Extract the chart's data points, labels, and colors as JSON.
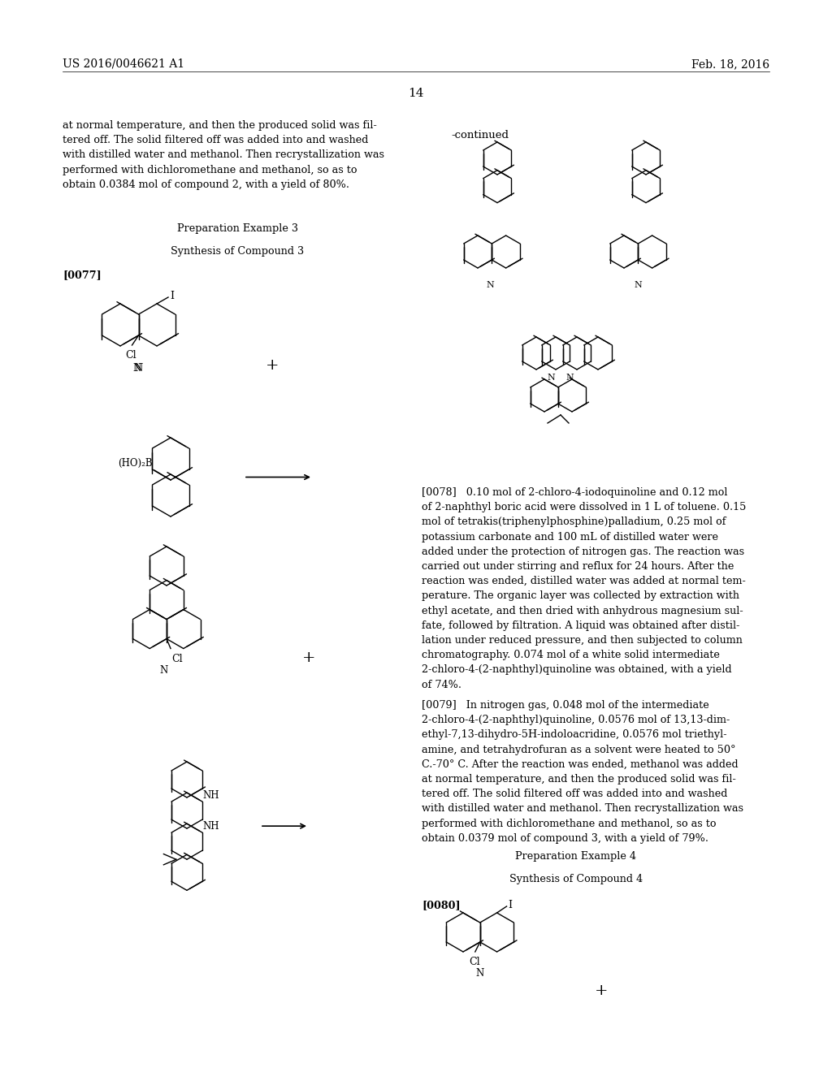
{
  "background_color": "#ffffff",
  "header_left": "US 2016/0046621 A1",
  "header_right": "Feb. 18, 2016",
  "page_number": "14",
  "continued_label": "-continued",
  "para_text1": "at normal temperature, and then the produced solid was fil-\ntered off. The solid filtered off was added into and washed\nwith distilled water and methanol. Then recrystallization was\nperformed with dichloromethane and methanol, so as to\nobtain 0.0384 mol of compound 2, with a yield of 80%.",
  "prep3": "Preparation Example 3",
  "synth3": "Synthesis of Compound 3",
  "tag0077": "[0077]",
  "tag0078": "[0078]",
  "tag0079": "[0079]",
  "tag0080": "[0080]",
  "prep4": "Preparation Example 4",
  "synth4": "Synthesis of Compound 4",
  "text0078": "[0078]   0.10 mol of 2-chloro-4-iodoquinoline and 0.12 mol\nof 2-naphthyl boric acid were dissolved in 1 L of toluene. 0.15\nmol of tetrakis(triphenylphosphine)palladium, 0.25 mol of\npotassium carbonate and 100 mL of distilled water were\nadded under the protection of nitrogen gas. The reaction was\ncarried out under stirring and reflux for 24 hours. After the\nreaction was ended, distilled water was added at normal tem-\nperature. The organic layer was collected by extraction with\nethyl acetate, and then dried with anhydrous magnesium sul-\nfate, followed by filtration. A liquid was obtained after distil-\nlation under reduced pressure, and then subjected to column\nchromatography. 0.074 mol of a white solid intermediate\n2-chloro-4-(2-naphthyl)quinoline was obtained, with a yield\nof 74%.",
  "text0079": "[0079]   In nitrogen gas, 0.048 mol of the intermediate\n2-chloro-4-(2-naphthyl)quinoline, 0.0576 mol of 13,13-dim-\nethyl-7,13-dihydro-5H-indoloacridine, 0.0576 mol triethyl-\namine, and tetrahydrofuran as a solvent were heated to 50°\nC.-70° C. After the reaction was ended, methanol was added\nat normal temperature, and then the produced solid was fil-\ntered off. The solid filtered off was added into and washed\nwith distilled water and methanol. Then recrystallization was\nperformed with dichloromethane and methanol, so as to\nobtain 0.0379 mol of compound 3, with a yield of 79%."
}
